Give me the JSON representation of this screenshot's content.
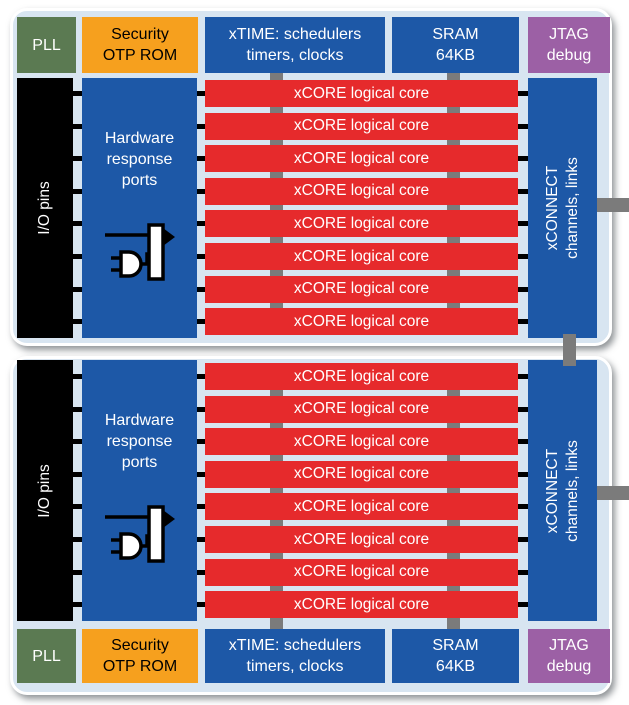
{
  "colors": {
    "tile_background": "#d8e5f1",
    "pll_green": "#5b7a52",
    "security_orange": "#f6a01e",
    "block_blue": "#1d58a7",
    "core_red": "#e62a2c",
    "jtag_purple": "#9c60a5",
    "io_black": "#000000",
    "connector_gray": "#7b7b7b",
    "text_white": "#ffffff",
    "text_black": "#000000"
  },
  "tile_labels": {
    "pll": "PLL",
    "security": [
      "Security",
      "OTP ROM"
    ],
    "xtime": [
      "xTIME: schedulers",
      "timers, clocks"
    ],
    "sram": [
      "SRAM",
      "64KB"
    ],
    "jtag": [
      "JTAG",
      "debug"
    ],
    "io_pins": "I/O pins",
    "hardware_ports": [
      "Hardware",
      "response",
      "ports"
    ],
    "core": "xCORE logical core",
    "cores_per_tile": 8,
    "xconnect": [
      "xCONNECT",
      "channels, links"
    ]
  },
  "tiles": [
    {
      "name": "tile-1",
      "header_position": "top"
    },
    {
      "name": "tile-2",
      "header_position": "bottom"
    }
  ]
}
